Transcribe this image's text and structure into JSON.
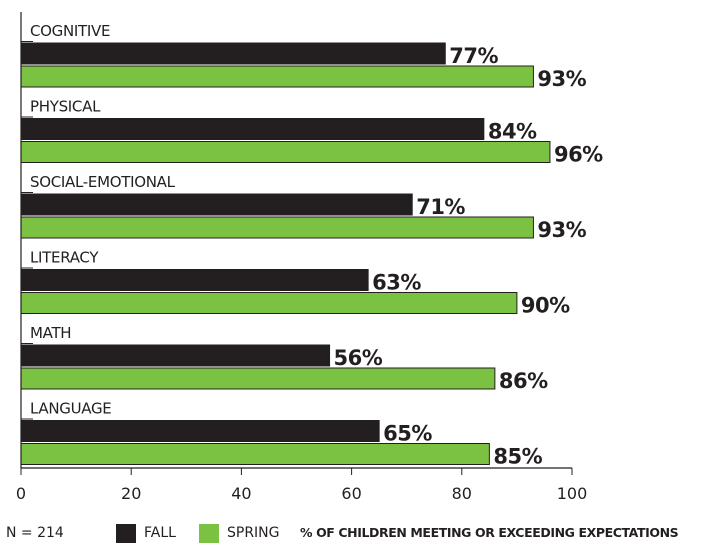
{
  "chart_data": {
    "type": "bar",
    "orientation": "horizontal",
    "categories": [
      "COGNITIVE",
      "PHYSICAL",
      "SOCIAL-EMOTIONAL",
      "LITERACY",
      "MATH",
      "LANGUAGE"
    ],
    "series": [
      {
        "name": "FALL",
        "values": [
          77,
          84,
          71,
          63,
          56,
          65
        ],
        "color": "#231f20"
      },
      {
        "name": "SPRING",
        "values": [
          93,
          96,
          93,
          90,
          86,
          85
        ],
        "color": "#7cc242"
      }
    ],
    "value_labels": {
      "FALL": [
        "77%",
        "84%",
        "71%",
        "63%",
        "56%",
        "65%"
      ],
      "SPRING": [
        "93%",
        "96%",
        "93%",
        "90%",
        "86%",
        "85%"
      ]
    },
    "xlim": [
      0,
      100
    ],
    "xticks": [
      0,
      20,
      40,
      60,
      80,
      100
    ],
    "xlabel": "% OF CHILDREN MEETING OR EXCEEDING EXPECTATIONS",
    "legend_position": "bottom",
    "grid": false
  },
  "footer": {
    "n_label": "N = 214",
    "fall_label": "FALL",
    "spring_label": "SPRING"
  }
}
